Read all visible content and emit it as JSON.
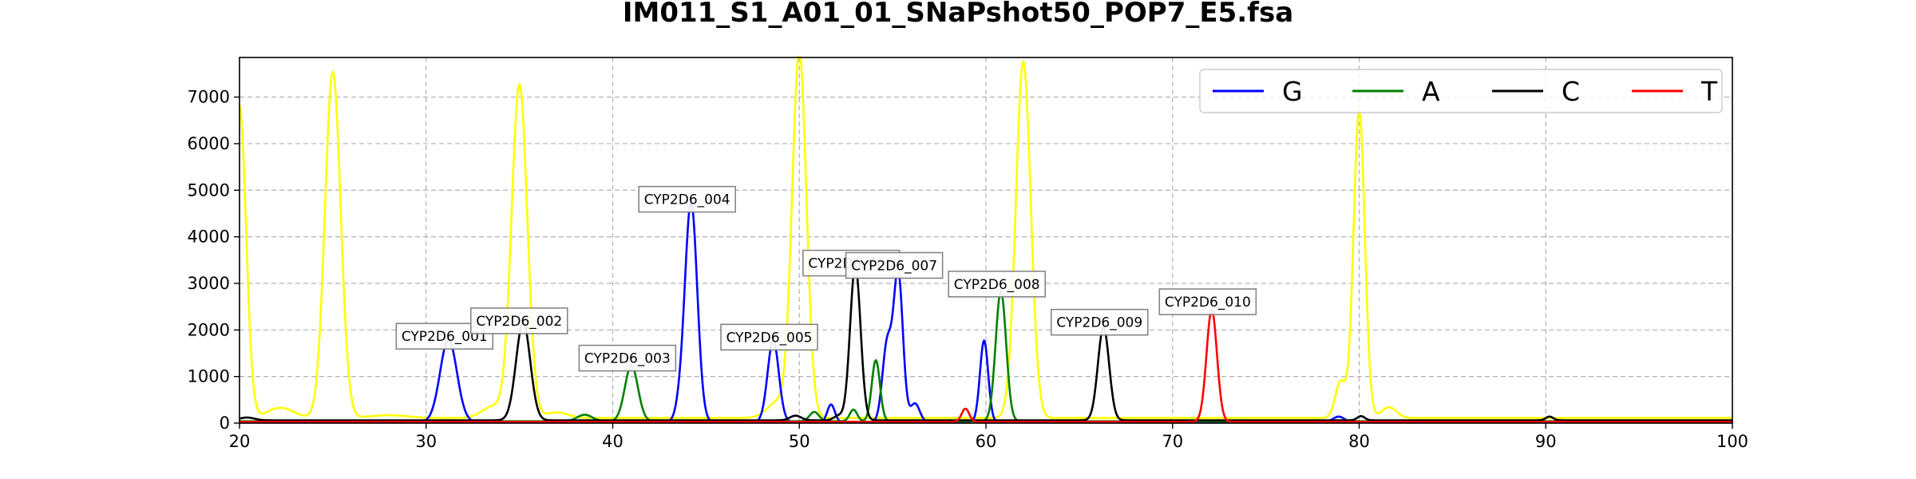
{
  "chart_data": {
    "type": "line",
    "title": "IM011_S1_A01_01_SNaPshot50_POP7_E5.fsa",
    "xlabel": "",
    "ylabel": "",
    "xlim": [
      20,
      100
    ],
    "ylim": [
      0,
      7850
    ],
    "x_ticks": [
      20,
      30,
      40,
      50,
      60,
      70,
      80,
      90,
      100
    ],
    "y_ticks": [
      0,
      1000,
      2000,
      3000,
      4000,
      5000,
      6000,
      7000
    ],
    "grid": true,
    "legend_position": "top-right",
    "series": [
      {
        "name": "G",
        "color": "#0000ff",
        "baseline": 20,
        "peaks": [
          {
            "x": 31.2,
            "h": 1780,
            "w": 0.45
          },
          {
            "x": 43.6,
            "h": 250,
            "w": 0.25
          },
          {
            "x": 44.2,
            "h": 4720,
            "w": 0.33
          },
          {
            "x": 48.6,
            "h": 1760,
            "w": 0.3
          },
          {
            "x": 51.7,
            "h": 380,
            "w": 0.2
          },
          {
            "x": 54.7,
            "h": 1650,
            "w": 0.25
          },
          {
            "x": 55.3,
            "h": 3180,
            "w": 0.25
          },
          {
            "x": 56.2,
            "h": 400,
            "w": 0.25
          },
          {
            "x": 59.9,
            "h": 1750,
            "w": 0.22
          },
          {
            "x": 78.9,
            "h": 120,
            "w": 0.3
          }
        ]
      },
      {
        "name": "A",
        "color": "#008000",
        "baseline": 40,
        "peaks": [
          {
            "x": 38.5,
            "h": 140,
            "w": 0.4
          },
          {
            "x": 41.0,
            "h": 1200,
            "w": 0.35
          },
          {
            "x": 50.8,
            "h": 200,
            "w": 0.25
          },
          {
            "x": 52.9,
            "h": 250,
            "w": 0.2
          },
          {
            "x": 54.1,
            "h": 1310,
            "w": 0.22
          },
          {
            "x": 60.8,
            "h": 2800,
            "w": 0.28
          }
        ]
      },
      {
        "name": "C",
        "color": "#000000",
        "baseline": 60,
        "peaks": [
          {
            "x": 20.4,
            "h": 60,
            "w": 0.4
          },
          {
            "x": 35.2,
            "h": 2110,
            "w": 0.38
          },
          {
            "x": 49.8,
            "h": 100,
            "w": 0.3
          },
          {
            "x": 52.1,
            "h": 100,
            "w": 0.25
          },
          {
            "x": 53.0,
            "h": 3320,
            "w": 0.28
          },
          {
            "x": 66.3,
            "h": 2000,
            "w": 0.3
          },
          {
            "x": 80.1,
            "h": 90,
            "w": 0.2
          },
          {
            "x": 90.2,
            "h": 80,
            "w": 0.2
          }
        ]
      },
      {
        "name": "T",
        "color": "#ff0000",
        "baseline": 30,
        "peaks": [
          {
            "x": 58.9,
            "h": 280,
            "w": 0.2
          },
          {
            "x": 72.1,
            "h": 2400,
            "w": 0.28
          }
        ]
      },
      {
        "name": "",
        "color": "#ffff00",
        "baseline": 110,
        "peaks": [
          {
            "x": 20.0,
            "h": 6700,
            "w": 0.35
          },
          {
            "x": 22.2,
            "h": 220,
            "w": 0.7
          },
          {
            "x": 25.0,
            "h": 7430,
            "w": 0.42
          },
          {
            "x": 28.0,
            "h": 60,
            "w": 1.0
          },
          {
            "x": 33.6,
            "h": 250,
            "w": 0.6
          },
          {
            "x": 35.0,
            "h": 7150,
            "w": 0.42
          },
          {
            "x": 37.0,
            "h": 120,
            "w": 0.6
          },
          {
            "x": 48.9,
            "h": 350,
            "w": 0.6
          },
          {
            "x": 50.0,
            "h": 7800,
            "w": 0.38
          },
          {
            "x": 62.0,
            "h": 7650,
            "w": 0.4
          },
          {
            "x": 79.0,
            "h": 780,
            "w": 0.28
          },
          {
            "x": 80.0,
            "h": 6620,
            "w": 0.3
          },
          {
            "x": 81.6,
            "h": 230,
            "w": 0.4
          }
        ]
      }
    ],
    "annotations": [
      {
        "text": "CYP2D6_001",
        "x": 31.2,
        "y": 1780
      },
      {
        "text": "CYP2D6_002",
        "x": 35.2,
        "y": 2110
      },
      {
        "text": "CYP2D6_003",
        "x": 41.0,
        "y": 1310
      },
      {
        "text": "CYP2D6_004",
        "x": 44.2,
        "y": 4720
      },
      {
        "text": "CYP2D6_005",
        "x": 48.6,
        "y": 1760
      },
      {
        "text": "CYP2D6_006",
        "x": 53.0,
        "y": 3350
      },
      {
        "text": "CYP2D6_007",
        "x": 55.3,
        "y": 3300
      },
      {
        "text": "CYP2D6_008",
        "x": 60.8,
        "y": 2900
      },
      {
        "text": "CYP2D6_009",
        "x": 66.3,
        "y": 2080
      },
      {
        "text": "CYP2D6_010",
        "x": 72.1,
        "y": 2520
      }
    ]
  }
}
